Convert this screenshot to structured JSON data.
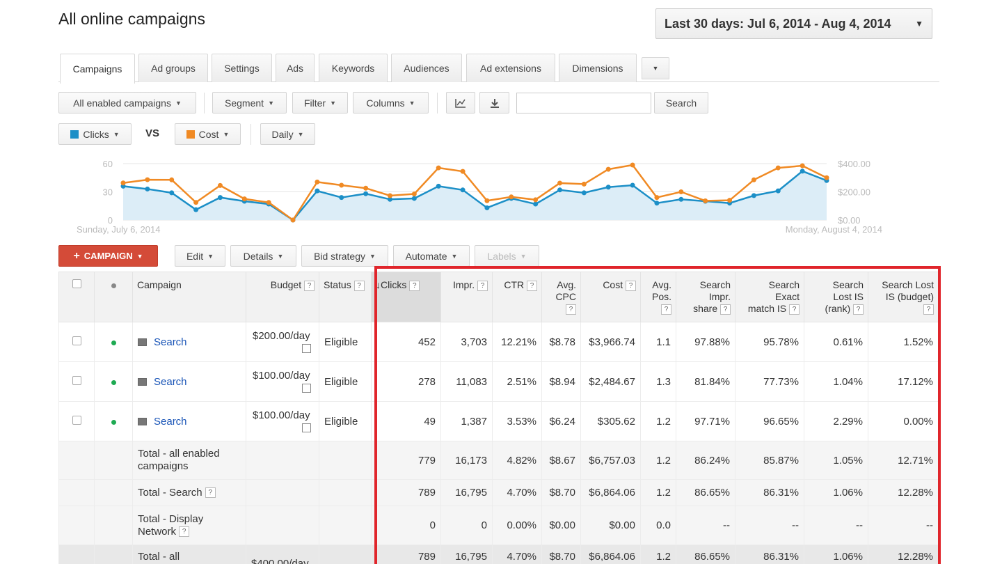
{
  "page": {
    "title": "All online campaigns"
  },
  "date_range": {
    "label": "Last 30 days: Jul 6, 2014 - Aug 4, 2014"
  },
  "tabs": [
    {
      "label": "Campaigns",
      "active": true
    },
    {
      "label": "Ad groups"
    },
    {
      "label": "Settings"
    },
    {
      "label": "Ads"
    },
    {
      "label": "Keywords"
    },
    {
      "label": "Audiences"
    },
    {
      "label": "Ad extensions"
    },
    {
      "label": "Dimensions"
    }
  ],
  "toolbar": {
    "filter_scope": "All enabled campaigns",
    "segment": "Segment",
    "filter": "Filter",
    "columns": "Columns",
    "search_placeholder": "",
    "search_button": "Search"
  },
  "chart_controls": {
    "metric1": "Clicks",
    "metric1_color": "#1c8fc7",
    "vs": "VS",
    "metric2": "Cost",
    "metric2_color": "#f08a24",
    "interval": "Daily"
  },
  "chart_data": {
    "type": "line",
    "x_start_label": "Sunday, July 6, 2014",
    "x_end_label": "Monday, August 4, 2014",
    "left_axis_ticks": [
      "60",
      "30",
      "0"
    ],
    "right_axis_ticks": [
      "$400.00",
      "$200.00",
      "$0.00"
    ],
    "ylim_left": [
      0,
      60
    ],
    "ylim_right": [
      0,
      400
    ],
    "grid": true,
    "series": [
      {
        "name": "Clicks",
        "axis": "left",
        "color": "#1c8fc7",
        "area": true,
        "values": [
          36,
          33,
          29,
          11,
          24,
          20,
          17,
          0,
          31,
          24,
          28,
          22,
          23,
          36,
          32,
          13,
          23,
          17,
          32,
          29,
          35,
          37,
          18,
          22,
          20,
          18,
          26,
          31,
          52,
          42
        ]
      },
      {
        "name": "Cost",
        "axis": "right",
        "color": "#f08a24",
        "area": false,
        "values": [
          263,
          286,
          285,
          125,
          245,
          150,
          125,
          0,
          270,
          247,
          226,
          173,
          185,
          370,
          345,
          137,
          164,
          144,
          262,
          255,
          360,
          390,
          160,
          200,
          136,
          140,
          285,
          370,
          385,
          300
        ]
      }
    ]
  },
  "actions": {
    "campaign": "CAMPAIGN",
    "edit": "Edit",
    "details": "Details",
    "bid_strategy": "Bid strategy",
    "automate": "Automate",
    "labels": "Labels"
  },
  "table": {
    "headers": {
      "campaign": "Campaign",
      "budget": "Budget",
      "status": "Status",
      "clicks": "Clicks",
      "impr": "Impr.",
      "ctr": "CTR",
      "avg_cpc_1": "Avg.",
      "avg_cpc_2": "CPC",
      "cost": "Cost",
      "avg_pos_1": "Avg.",
      "avg_pos_2": "Pos.",
      "sis_1": "Search",
      "sis_2": "Impr.",
      "sis_3": "share",
      "sem_1": "Search",
      "sem_2": "Exact",
      "sem_3": "match IS",
      "slr_1": "Search",
      "slr_2": "Lost IS",
      "slr_3": "(rank)",
      "slb_1": "Search Lost",
      "slb_2": "IS (budget)"
    },
    "rows": [
      {
        "campaign": "Search",
        "budget": "$200.00/day",
        "status": "Eligible",
        "clicks": "452",
        "impr": "3,703",
        "ctr": "12.21%",
        "cpc": "$8.78",
        "cost": "$3,966.74",
        "pos": "1.1",
        "sis": "97.88%",
        "sem": "95.78%",
        "slr": "0.61%",
        "slb": "1.52%"
      },
      {
        "campaign": "Search",
        "budget": "$100.00/day",
        "status": "Eligible",
        "clicks": "278",
        "impr": "11,083",
        "ctr": "2.51%",
        "cpc": "$8.94",
        "cost": "$2,484.67",
        "pos": "1.3",
        "sis": "81.84%",
        "sem": "77.73%",
        "slr": "1.04%",
        "slb": "17.12%"
      },
      {
        "campaign": "Search",
        "budget": "$100.00/day",
        "status": "Eligible",
        "clicks": "49",
        "impr": "1,387",
        "ctr": "3.53%",
        "cpc": "$6.24",
        "cost": "$305.62",
        "pos": "1.2",
        "sis": "97.71%",
        "sem": "96.65%",
        "slr": "2.29%",
        "slb": "0.00%"
      }
    ],
    "totals": [
      {
        "label1": "Total - all enabled",
        "label2": "campaigns",
        "budget": "",
        "clicks": "779",
        "impr": "16,173",
        "ctr": "4.82%",
        "cpc": "$8.67",
        "cost": "$6,757.03",
        "pos": "1.2",
        "sis": "86.24%",
        "sem": "85.87%",
        "slr": "1.05%",
        "slb": "12.71%"
      },
      {
        "label1": "Total - Search",
        "label2": "",
        "budget": "",
        "clicks": "789",
        "impr": "16,795",
        "ctr": "4.70%",
        "cpc": "$8.70",
        "cost": "$6,864.06",
        "pos": "1.2",
        "sis": "86.65%",
        "sem": "86.31%",
        "slr": "1.06%",
        "slb": "12.28%"
      },
      {
        "label1": "Total - Display",
        "label2": "Network",
        "budget": "",
        "clicks": "0",
        "impr": "0",
        "ctr": "0.00%",
        "cpc": "$0.00",
        "cost": "$0.00",
        "pos": "0.0",
        "sis": "--",
        "sem": "--",
        "slr": "--",
        "slb": "--"
      },
      {
        "label1": "Total - all",
        "label2": "",
        "budget": "$400.00/day",
        "clicks": "789",
        "impr": "16,795",
        "ctr": "4.70%",
        "cpc": "$8.70",
        "cost": "$6,864.06",
        "pos": "1.2",
        "sis": "86.65%",
        "sem": "86.31%",
        "slr": "1.06%",
        "slb": "12.28%"
      }
    ]
  }
}
